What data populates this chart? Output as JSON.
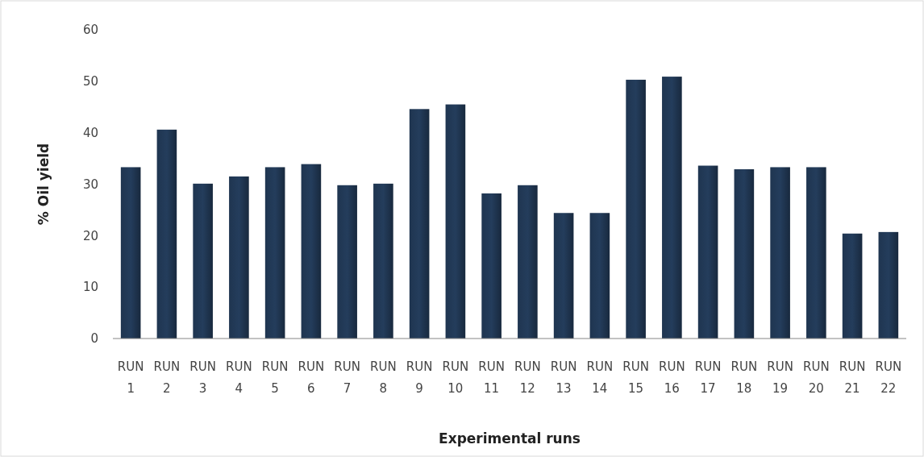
{
  "chart_data": {
    "type": "bar",
    "xlabel": "Experimental runs",
    "ylabel": "% Oil yield",
    "categories": [
      "RUN 1",
      "RUN 2",
      "RUN 3",
      "RUN 4",
      "RUN 5",
      "RUN 6",
      "RUN 7",
      "RUN 8",
      "RUN 9",
      "RUN 10",
      "RUN 11",
      "RUN 12",
      "RUN 13",
      "RUN 14",
      "RUN 15",
      "RUN 16",
      "RUN 17",
      "RUN 18",
      "RUN 19",
      "RUN 20",
      "RUN 21",
      "RUN 22"
    ],
    "values": [
      33.3,
      40.6,
      30.1,
      31.5,
      33.3,
      33.9,
      29.8,
      30.1,
      44.6,
      45.5,
      28.2,
      29.8,
      24.4,
      24.4,
      50.3,
      50.9,
      33.6,
      32.9,
      33.3,
      33.3,
      20.4,
      20.7
    ],
    "color": "#1f3550",
    "ylim": [
      0,
      60
    ],
    "yticks": [
      0,
      10,
      20,
      30,
      40,
      50,
      60
    ],
    "grid": false
  }
}
